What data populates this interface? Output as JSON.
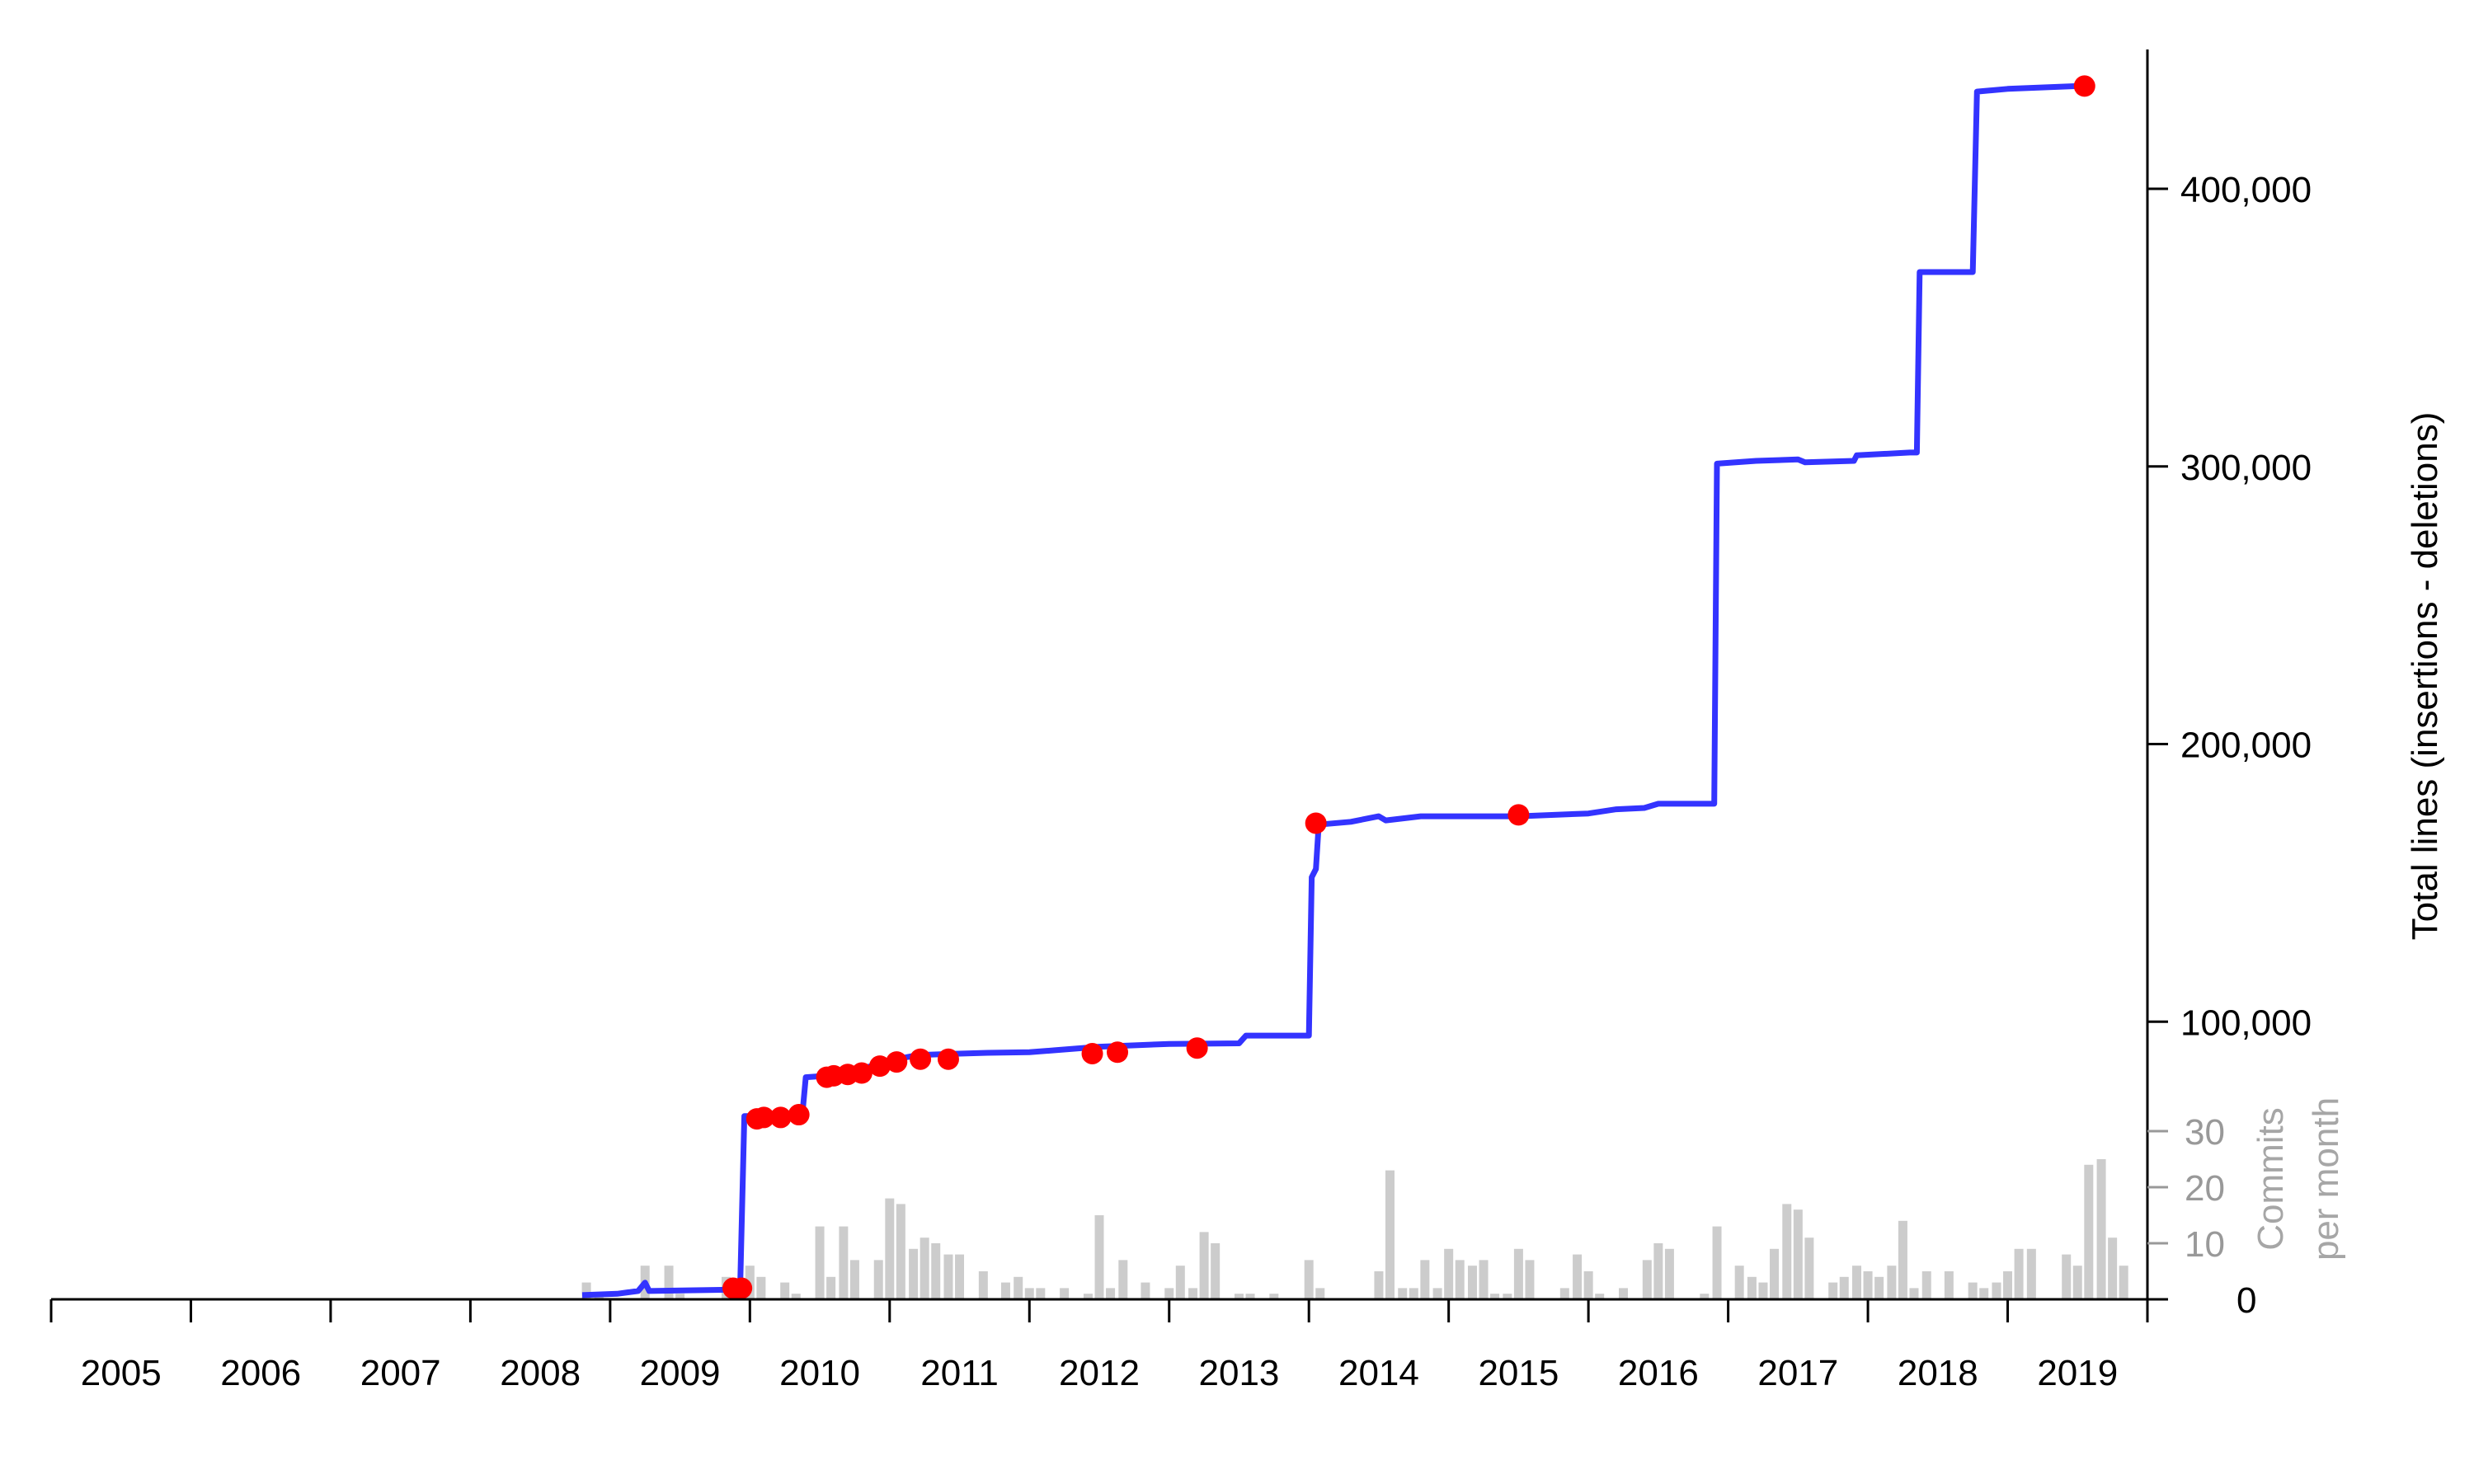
{
  "chart_data": {
    "type": "line",
    "title": "",
    "x_axis": {
      "labels": [
        "2005",
        "2006",
        "2007",
        "2008",
        "2009",
        "2010",
        "2011",
        "2012",
        "2013",
        "2014",
        "2015",
        "2016",
        "2017",
        "2018",
        "2019"
      ],
      "range": [
        2005.0,
        2020.0
      ]
    },
    "y_axis": {
      "label": "Total lines (insertions - deletions)",
      "ticks": [
        100000,
        200000,
        300000,
        400000
      ],
      "tick_labels": [
        "100,000",
        "200,000",
        "300,000",
        "400,000"
      ],
      "zero_label": "0",
      "range": [
        0,
        450000
      ]
    },
    "commit_axis": {
      "label_line1": "Commits",
      "label_line2": "per month",
      "ticks": [
        10,
        20,
        30
      ],
      "tick_labels": [
        "10",
        "20",
        "30"
      ],
      "range": [
        0,
        30
      ],
      "color": "#999999"
    },
    "colors": {
      "line": "#3333ff",
      "markers": "#ff0000",
      "bars": "#cccccc"
    },
    "series": [
      {
        "values": [
          [
            2008.8,
            1500
          ],
          [
            2009.05,
            2000
          ],
          [
            2009.2,
            3000
          ],
          [
            2009.25,
            6000
          ],
          [
            2009.28,
            3000
          ],
          [
            2009.9,
            3500
          ],
          [
            2009.93,
            4000
          ],
          [
            2009.96,
            66000
          ],
          [
            2010.0,
            66000
          ],
          [
            2010.3,
            67000
          ],
          [
            2010.38,
            69000
          ],
          [
            2010.4,
            80000
          ],
          [
            2010.55,
            80500
          ],
          [
            2010.8,
            83000
          ],
          [
            2011.0,
            86000
          ],
          [
            2011.2,
            88000
          ],
          [
            2011.5,
            88500
          ],
          [
            2011.7,
            88800
          ],
          [
            2012.0,
            89000
          ],
          [
            2012.5,
            91000
          ],
          [
            2013.0,
            92000
          ],
          [
            2013.5,
            92200
          ],
          [
            2013.55,
            95000
          ],
          [
            2014.0,
            95000
          ],
          [
            2014.02,
            152000
          ],
          [
            2014.05,
            155000
          ],
          [
            2014.07,
            171000
          ],
          [
            2014.3,
            172000
          ],
          [
            2014.5,
            174000
          ],
          [
            2014.55,
            172500
          ],
          [
            2014.8,
            174000
          ],
          [
            2015.5,
            174000
          ],
          [
            2016.0,
            175000
          ],
          [
            2016.2,
            176500
          ],
          [
            2016.4,
            177000
          ],
          [
            2016.5,
            178500
          ],
          [
            2016.9,
            178500
          ],
          [
            2016.92,
            301000
          ],
          [
            2017.2,
            302000
          ],
          [
            2017.5,
            302500
          ],
          [
            2017.55,
            301500
          ],
          [
            2017.9,
            302000
          ],
          [
            2017.92,
            304000
          ],
          [
            2018.3,
            305000
          ],
          [
            2018.35,
            305000
          ],
          [
            2018.37,
            370000
          ],
          [
            2018.75,
            370000
          ],
          [
            2018.78,
            435000
          ],
          [
            2019.0,
            436000
          ],
          [
            2019.5,
            437000
          ]
        ]
      }
    ],
    "release_markers": [
      [
        2009.88,
        4000
      ],
      [
        2009.94,
        4000
      ],
      [
        2010.05,
        65000
      ],
      [
        2010.1,
        65500
      ],
      [
        2010.22,
        65500
      ],
      [
        2010.35,
        66500
      ],
      [
        2010.55,
        80000
      ],
      [
        2010.6,
        80500
      ],
      [
        2010.7,
        81000
      ],
      [
        2010.8,
        81500
      ],
      [
        2010.93,
        84000
      ],
      [
        2011.05,
        85500
      ],
      [
        2011.22,
        86500
      ],
      [
        2011.42,
        86500
      ],
      [
        2012.45,
        88500
      ],
      [
        2012.63,
        89000
      ],
      [
        2013.2,
        90500
      ],
      [
        2014.05,
        171500
      ],
      [
        2015.5,
        174500
      ],
      [
        2019.55,
        437000
      ]
    ],
    "commits_per_month": [
      [
        2008.83,
        3
      ],
      [
        2008.92,
        1
      ],
      [
        2009.25,
        6
      ],
      [
        2009.42,
        6
      ],
      [
        2009.5,
        1
      ],
      [
        2009.83,
        4
      ],
      [
        2009.92,
        2
      ],
      [
        2010.0,
        6
      ],
      [
        2010.08,
        4
      ],
      [
        2010.25,
        3
      ],
      [
        2010.33,
        1
      ],
      [
        2010.5,
        13
      ],
      [
        2010.58,
        4
      ],
      [
        2010.67,
        13
      ],
      [
        2010.75,
        7
      ],
      [
        2010.92,
        7
      ],
      [
        2011.0,
        18
      ],
      [
        2011.08,
        17
      ],
      [
        2011.17,
        9
      ],
      [
        2011.25,
        11
      ],
      [
        2011.33,
        10
      ],
      [
        2011.42,
        8
      ],
      [
        2011.5,
        8
      ],
      [
        2011.67,
        5
      ],
      [
        2011.83,
        3
      ],
      [
        2011.92,
        4
      ],
      [
        2012.0,
        2
      ],
      [
        2012.08,
        2
      ],
      [
        2012.25,
        2
      ],
      [
        2012.42,
        1
      ],
      [
        2012.5,
        15
      ],
      [
        2012.58,
        2
      ],
      [
        2012.67,
        7
      ],
      [
        2012.83,
        3
      ],
      [
        2013.0,
        2
      ],
      [
        2013.08,
        6
      ],
      [
        2013.17,
        2
      ],
      [
        2013.25,
        12
      ],
      [
        2013.33,
        10
      ],
      [
        2013.5,
        1
      ],
      [
        2013.58,
        1
      ],
      [
        2013.75,
        1
      ],
      [
        2014.0,
        7
      ],
      [
        2014.08,
        2
      ],
      [
        2014.5,
        5
      ],
      [
        2014.58,
        23
      ],
      [
        2014.67,
        2
      ],
      [
        2014.75,
        2
      ],
      [
        2014.83,
        7
      ],
      [
        2014.92,
        2
      ],
      [
        2015.0,
        9
      ],
      [
        2015.08,
        7
      ],
      [
        2015.17,
        6
      ],
      [
        2015.25,
        7
      ],
      [
        2015.33,
        1
      ],
      [
        2015.42,
        1
      ],
      [
        2015.5,
        9
      ],
      [
        2015.58,
        7
      ],
      [
        2015.83,
        2
      ],
      [
        2015.92,
        8
      ],
      [
        2016.0,
        5
      ],
      [
        2016.08,
        1
      ],
      [
        2016.25,
        2
      ],
      [
        2016.42,
        7
      ],
      [
        2016.5,
        10
      ],
      [
        2016.58,
        9
      ],
      [
        2016.83,
        1
      ],
      [
        2016.92,
        13
      ],
      [
        2017.08,
        6
      ],
      [
        2017.17,
        4
      ],
      [
        2017.25,
        3
      ],
      [
        2017.33,
        9
      ],
      [
        2017.42,
        17
      ],
      [
        2017.5,
        16
      ],
      [
        2017.58,
        11
      ],
      [
        2017.75,
        3
      ],
      [
        2017.83,
        4
      ],
      [
        2017.92,
        6
      ],
      [
        2018.0,
        5
      ],
      [
        2018.08,
        4
      ],
      [
        2018.17,
        6
      ],
      [
        2018.25,
        14
      ],
      [
        2018.33,
        2
      ],
      [
        2018.42,
        5
      ],
      [
        2018.58,
        5
      ],
      [
        2018.75,
        3
      ],
      [
        2018.83,
        2
      ],
      [
        2018.92,
        3
      ],
      [
        2019.0,
        5
      ],
      [
        2019.08,
        9
      ],
      [
        2019.17,
        9
      ],
      [
        2019.42,
        8
      ],
      [
        2019.5,
        6
      ],
      [
        2019.58,
        24
      ],
      [
        2019.67,
        25
      ],
      [
        2019.75,
        11
      ],
      [
        2019.83,
        6
      ],
      [
        2020.0,
        9
      ],
      [
        2020.08,
        7
      ]
    ]
  }
}
